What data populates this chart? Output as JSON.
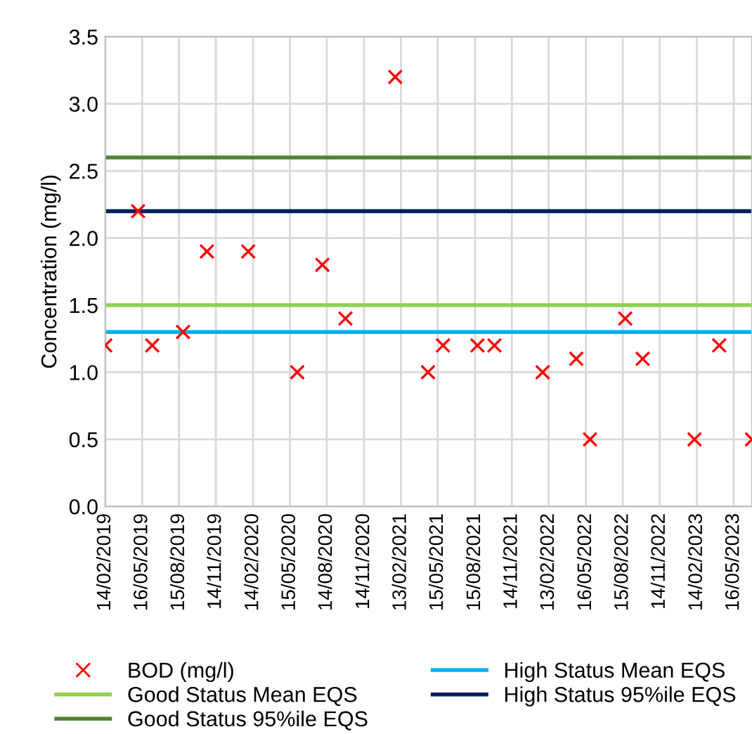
{
  "chart_data": {
    "type": "scatter",
    "ylabel": "Concentration (mg/l)",
    "x": [
      "2019-02-14",
      "2019-05-06",
      "2019-06-10",
      "2019-08-25",
      "2019-10-23",
      "2020-02-02",
      "2020-06-02",
      "2020-08-03",
      "2020-09-29",
      "2021-01-30",
      "2021-04-21",
      "2021-05-28",
      "2021-08-21",
      "2021-10-02",
      "2022-01-29",
      "2022-04-22",
      "2022-05-26",
      "2022-08-21",
      "2022-10-03",
      "2023-02-08",
      "2023-04-10",
      "2023-06-30"
    ],
    "series": [
      {
        "name": "BOD (mg/l)",
        "color": "#ff0000",
        "values": [
          1.2,
          2.2,
          1.2,
          1.3,
          1.9,
          1.9,
          1.0,
          1.8,
          1.4,
          3.2,
          1.0,
          1.2,
          1.2,
          1.2,
          1.0,
          1.1,
          0.5,
          1.4,
          1.1,
          0.5,
          1.2,
          0.5
        ]
      }
    ],
    "marker": "cross",
    "ref_lines": [
      {
        "axis": "y",
        "value": 1.3,
        "label": "High Status Mean EQS",
        "color": "#00b0f0"
      },
      {
        "axis": "y",
        "value": 1.5,
        "label": "Good Status Mean EQS",
        "color": "#92d050"
      },
      {
        "axis": "y",
        "value": 2.2,
        "label": "High Status 95%ile EQS",
        "color": "#002060"
      },
      {
        "axis": "y",
        "value": 2.6,
        "label": "Good Status 95%ile EQS",
        "color": "#548235"
      }
    ],
    "xlim": [
      "2019-02-14",
      "2023-06-30"
    ],
    "xticks": [
      {
        "value": "2019-02-14",
        "label": "14/02/2019"
      },
      {
        "value": "2019-05-16",
        "label": "16/05/2019"
      },
      {
        "value": "2019-08-15",
        "label": "15/08/2019"
      },
      {
        "value": "2019-11-14",
        "label": "14/11/2019"
      },
      {
        "value": "2020-02-14",
        "label": "14/02/2020"
      },
      {
        "value": "2020-05-15",
        "label": "15/05/2020"
      },
      {
        "value": "2020-08-14",
        "label": "14/08/2020"
      },
      {
        "value": "2020-11-14",
        "label": "14/11/2020"
      },
      {
        "value": "2021-02-13",
        "label": "13/02/2021"
      },
      {
        "value": "2021-05-15",
        "label": "15/05/2021"
      },
      {
        "value": "2021-08-15",
        "label": "15/08/2021"
      },
      {
        "value": "2021-11-14",
        "label": "14/11/2021"
      },
      {
        "value": "2022-02-13",
        "label": "13/02/2022"
      },
      {
        "value": "2022-05-16",
        "label": "16/05/2022"
      },
      {
        "value": "2022-08-15",
        "label": "15/08/2022"
      },
      {
        "value": "2022-11-14",
        "label": "14/11/2022"
      },
      {
        "value": "2023-02-14",
        "label": "14/02/2023"
      },
      {
        "value": "2023-05-16",
        "label": "16/05/2023"
      }
    ],
    "ylim": [
      0,
      3.5
    ],
    "yticks": [
      {
        "value": 0,
        "label": "0.0"
      },
      {
        "value": 0.5,
        "label": "0.5"
      },
      {
        "value": 1,
        "label": "1.0"
      },
      {
        "value": 1.5,
        "label": "1.5"
      },
      {
        "value": 2,
        "label": "2.0"
      },
      {
        "value": 2.5,
        "label": "2.5"
      },
      {
        "value": 3,
        "label": "3.0"
      },
      {
        "value": 3.5,
        "label": "3.5"
      }
    ],
    "grid": true,
    "legend": "bottom"
  }
}
